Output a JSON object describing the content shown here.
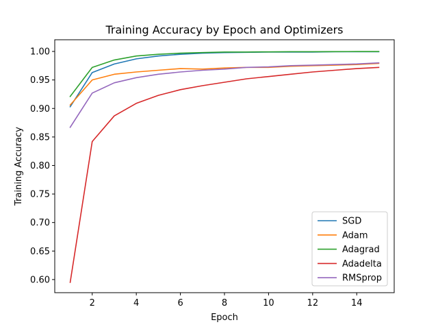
{
  "chart_data": {
    "type": "line",
    "title": "Training Accuracy by Epoch and Optimizers",
    "xlabel": "Epoch",
    "ylabel": "Training Accuracy",
    "xlim": [
      0.3,
      15.7
    ],
    "ylim": [
      0.577,
      1.0205
    ],
    "xticks": [
      2,
      4,
      6,
      8,
      10,
      12,
      14
    ],
    "yticks": [
      0.6,
      0.65,
      0.7,
      0.75,
      0.8,
      0.85,
      0.9,
      0.95,
      1.0
    ],
    "ytick_labels": [
      "0.60",
      "0.65",
      "0.70",
      "0.75",
      "0.80",
      "0.85",
      "0.90",
      "0.95",
      "1.00"
    ],
    "grid": false,
    "legend_position": "lower right",
    "x": [
      1,
      2,
      3,
      4,
      5,
      6,
      7,
      8,
      9,
      10,
      11,
      12,
      13,
      14,
      15
    ],
    "series": [
      {
        "name": "SGD",
        "color": "#1f77b4",
        "values": [
          0.903,
          0.963,
          0.978,
          0.987,
          0.992,
          0.995,
          0.997,
          0.998,
          0.9985,
          0.999,
          0.999,
          0.999,
          0.9995,
          0.9995,
          0.9995
        ]
      },
      {
        "name": "Adam",
        "color": "#ff7f0e",
        "values": [
          0.906,
          0.95,
          0.96,
          0.964,
          0.967,
          0.97,
          0.969,
          0.971,
          0.972,
          0.972,
          0.974,
          0.975,
          0.976,
          0.977,
          0.979
        ]
      },
      {
        "name": "Adagrad",
        "color": "#2ca02c",
        "values": [
          0.921,
          0.972,
          0.985,
          0.992,
          0.995,
          0.997,
          0.998,
          0.999,
          0.999,
          0.9993,
          0.9995,
          0.9996,
          0.9997,
          0.9998,
          0.9998
        ]
      },
      {
        "name": "Adadelta",
        "color": "#d62728",
        "values": [
          0.595,
          0.842,
          0.887,
          0.909,
          0.923,
          0.933,
          0.94,
          0.946,
          0.952,
          0.956,
          0.96,
          0.964,
          0.967,
          0.97,
          0.972
        ]
      },
      {
        "name": "RMSprop",
        "color": "#9467bd",
        "values": [
          0.867,
          0.927,
          0.945,
          0.954,
          0.96,
          0.964,
          0.967,
          0.969,
          0.972,
          0.973,
          0.975,
          0.976,
          0.977,
          0.978,
          0.98
        ]
      }
    ]
  }
}
